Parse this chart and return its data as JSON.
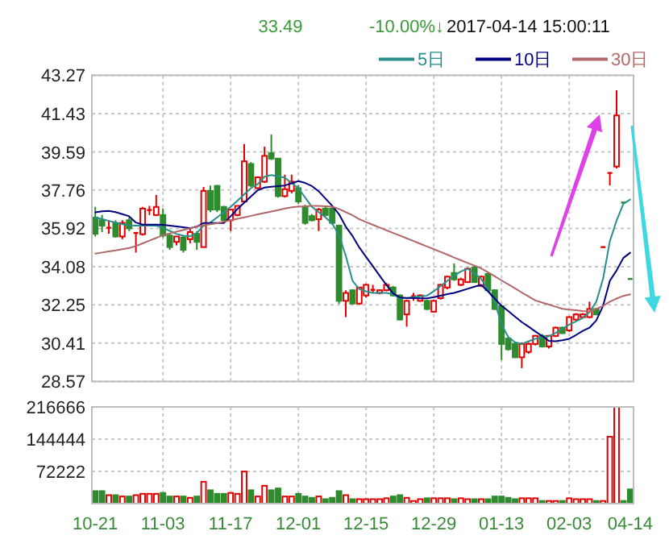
{
  "chart_data": [
    {
      "type": "candlestick",
      "annotations": [
        "33.49",
        "-10.00%↓",
        "2017-04-14 15:00:11"
      ],
      "categories": [
        null,
        null,
        null,
        null,
        null,
        null,
        null,
        null,
        null,
        null,
        null,
        null,
        null,
        null,
        null,
        null,
        null,
        null,
        null,
        null,
        null,
        null,
        null,
        null,
        null,
        null,
        null,
        null,
        null,
        null,
        null,
        null,
        null,
        null,
        null,
        null,
        null,
        null,
        null,
        null,
        null,
        null,
        null,
        null,
        null,
        null,
        null,
        null,
        null,
        null,
        null,
        null,
        null,
        null,
        null,
        null,
        null,
        null,
        null,
        null,
        null,
        null,
        null,
        null,
        null,
        null,
        null,
        null,
        null,
        null,
        null,
        null,
        null,
        null,
        null,
        null,
        null,
        null,
        null,
        null
      ],
      "ohlc": [
        [
          36.44,
          36.95,
          35.53,
          35.66
        ],
        [
          36.31,
          36.56,
          35.74,
          36.05
        ],
        [
          35.9,
          36.31,
          35.66,
          35.95
        ],
        [
          36.18,
          36.31,
          35.48,
          35.53
        ],
        [
          35.53,
          36.31,
          35.4,
          36.18
        ],
        [
          36.31,
          36.44,
          35.79,
          35.92
        ],
        [
          35.64,
          35.74,
          34.76,
          35.7
        ],
        [
          35.64,
          36.95,
          35.58,
          36.87
        ],
        [
          36.77,
          37.0,
          36.56,
          36.8
        ],
        [
          36.56,
          37.52,
          36.51,
          36.95
        ],
        [
          36.56,
          36.87,
          35.48,
          35.58
        ],
        [
          35.58,
          35.66,
          34.89,
          35.02
        ],
        [
          35.27,
          35.53,
          35.1,
          35.53
        ],
        [
          35.48,
          35.58,
          34.76,
          34.89
        ],
        [
          35.4,
          35.92,
          35.2,
          35.74
        ],
        [
          35.66,
          35.79,
          34.89,
          35.27
        ],
        [
          35.02,
          37.91,
          35.0,
          37.72
        ],
        [
          37.72,
          37.98,
          36.7,
          36.82
        ],
        [
          37.96,
          38.0,
          36.7,
          36.82
        ],
        [
          36.95,
          37.0,
          36.25,
          36.31
        ],
        [
          36.31,
          36.85,
          35.79,
          36.82
        ],
        [
          36.56,
          37.0,
          36.5,
          37.0
        ],
        [
          37.21,
          39.97,
          37.15,
          39.14
        ],
        [
          39.01,
          39.1,
          37.9,
          37.98
        ],
        [
          37.85,
          38.4,
          37.8,
          38.37
        ],
        [
          38.16,
          39.84,
          38.1,
          39.4
        ],
        [
          39.53,
          40.43,
          39.2,
          39.27
        ],
        [
          39.27,
          39.3,
          37.4,
          37.47
        ],
        [
          37.47,
          38.5,
          37.4,
          37.8
        ],
        [
          37.72,
          38.5,
          37.6,
          38.16
        ],
        [
          37.85,
          38.0,
          37.1,
          37.21
        ],
        [
          36.95,
          37.05,
          36.1,
          36.18
        ],
        [
          36.51,
          36.6,
          36.25,
          36.31
        ],
        [
          36.36,
          36.9,
          35.79,
          36.82
        ],
        [
          36.87,
          36.95,
          36.5,
          36.56
        ],
        [
          36.87,
          36.95,
          36.1,
          36.18
        ],
        [
          36.05,
          36.1,
          32.3,
          32.44
        ],
        [
          32.44,
          32.95,
          31.66,
          32.82
        ],
        [
          32.95,
          33.0,
          32.25,
          32.31
        ],
        [
          32.31,
          33.1,
          32.25,
          33.08
        ],
        [
          32.7,
          33.25,
          32.6,
          33.21
        ],
        [
          32.95,
          33.21,
          32.82,
          32.97
        ],
        [
          32.82,
          33.0,
          32.75,
          32.95
        ],
        [
          32.95,
          33.3,
          32.9,
          33.21
        ],
        [
          33.08,
          33.15,
          32.65,
          32.7
        ],
        [
          32.7,
          32.75,
          31.5,
          31.54
        ],
        [
          31.79,
          32.5,
          31.2,
          32.44
        ],
        [
          32.62,
          32.82,
          32.44,
          32.66
        ],
        [
          32.44,
          32.75,
          32.4,
          32.7
        ],
        [
          32.44,
          32.5,
          32.0,
          32.05
        ],
        [
          31.92,
          32.5,
          31.88,
          32.44
        ],
        [
          32.57,
          33.25,
          32.5,
          33.21
        ],
        [
          33.08,
          33.65,
          33.0,
          33.6
        ],
        [
          33.78,
          34.24,
          33.4,
          33.47
        ],
        [
          33.21,
          33.55,
          33.15,
          33.47
        ],
        [
          33.34,
          34.04,
          33.3,
          33.98
        ],
        [
          34.04,
          34.15,
          33.3,
          33.34
        ],
        [
          33.16,
          33.65,
          33.1,
          33.6
        ],
        [
          33.73,
          33.8,
          32.9,
          32.95
        ],
        [
          32.95,
          33.0,
          32.0,
          32.05
        ],
        [
          32.18,
          32.25,
          29.6,
          30.37
        ],
        [
          30.63,
          30.7,
          30.05,
          30.12
        ],
        [
          30.37,
          30.45,
          29.7,
          29.73
        ],
        [
          29.73,
          30.45,
          29.21,
          30.37
        ],
        [
          29.99,
          30.45,
          29.9,
          30.37
        ],
        [
          30.37,
          30.8,
          30.3,
          30.76
        ],
        [
          30.76,
          30.85,
          30.2,
          30.25
        ],
        [
          30.25,
          30.8,
          30.15,
          30.76
        ],
        [
          30.76,
          31.2,
          30.7,
          31.15
        ],
        [
          31.15,
          31.2,
          30.85,
          30.89
        ],
        [
          31.02,
          31.7,
          30.95,
          31.66
        ],
        [
          31.54,
          31.85,
          31.5,
          31.79
        ],
        [
          31.66,
          31.85,
          31.6,
          31.79
        ],
        [
          31.66,
          32.4,
          31.6,
          32.05
        ],
        [
          32.05,
          32.1,
          31.75,
          31.79
        ],
        [
          35.02,
          35.02,
          35.02,
          35.02
        ],
        [
          38.58,
          38.58,
          37.98,
          38.58
        ],
        [
          38.89,
          42.55,
          38.8,
          41.34
        ],
        [
          37.16,
          37.16,
          37.16,
          37.16
        ],
        [
          33.49,
          33.49,
          33.49,
          33.49
        ]
      ],
      "colors": [
        "#2e8b2e",
        "#2e8b2e",
        "#e00000",
        "#2e8b2e",
        "#e00000",
        "#2e8b2e",
        "#e00000",
        "#e00000",
        "#e00000",
        "#e00000",
        "#2e8b2e",
        "#2e8b2e",
        "#e00000",
        "#2e8b2e",
        "#e00000",
        "#2e8b2e",
        "#e00000",
        "#2e8b2e",
        "#2e8b2e",
        "#2e8b2e",
        "#e00000",
        "#e00000",
        "#e00000",
        "#2e8b2e",
        "#e00000",
        "#e00000",
        "#2e8b2e",
        "#2e8b2e",
        "#e00000",
        "#e00000",
        "#2e8b2e",
        "#2e8b2e",
        "#2e8b2e",
        "#e00000",
        "#2e8b2e",
        "#2e8b2e",
        "#2e8b2e",
        "#e00000",
        "#2e8b2e",
        "#e00000",
        "#e00000",
        "#e00000",
        "#e00000",
        "#e00000",
        "#2e8b2e",
        "#2e8b2e",
        "#e00000",
        "#e00000",
        "#e00000",
        "#2e8b2e",
        "#e00000",
        "#e00000",
        "#e00000",
        "#2e8b2e",
        "#e00000",
        "#e00000",
        "#2e8b2e",
        "#e00000",
        "#2e8b2e",
        "#2e8b2e",
        "#2e8b2e",
        "#2e8b2e",
        "#2e8b2e",
        "#e00000",
        "#e00000",
        "#e00000",
        "#2e8b2e",
        "#e00000",
        "#e00000",
        "#2e8b2e",
        "#e00000",
        "#e00000",
        "#e00000",
        "#e00000",
        "#2e8b2e",
        "#e00000",
        "#e00000",
        "#e00000",
        "#2e8b2e",
        "#2e8b2e"
      ],
      "series": [
        {
          "name": "5日",
          "type": "line",
          "color": "#2a8f8a",
          "values": [
            36.44,
            36.37,
            36.28,
            36.2,
            36.12,
            36.06,
            36.05,
            36.05,
            36.05,
            36.05,
            35.95,
            35.8,
            35.65,
            35.57,
            35.54,
            35.7,
            36.05,
            36.2,
            36.45,
            36.7,
            36.95,
            37.25,
            37.55,
            37.85,
            38.05,
            38.4,
            38.48,
            38.42,
            38.35,
            38.1,
            37.85,
            37.4,
            36.95,
            36.7,
            36.45,
            36.15,
            35.6,
            34.6,
            33.4,
            33.0,
            32.9,
            32.82,
            32.82,
            32.82,
            32.75,
            32.56,
            32.58,
            32.62,
            32.66,
            32.69,
            32.9,
            33.15,
            33.4,
            33.65,
            33.85,
            33.98,
            33.75,
            33.5,
            33.0,
            32.4,
            31.3,
            30.7,
            30.45,
            30.37,
            30.5,
            30.62,
            30.68,
            30.74,
            30.9,
            31.1,
            31.3,
            31.45,
            31.62,
            31.9,
            32.4,
            33.5,
            35.3,
            36.3,
            37.1,
            37.3
          ]
        },
        {
          "name": "10日",
          "type": "line",
          "color": "#000080",
          "values": [
            36.69,
            36.74,
            36.76,
            36.7,
            36.6,
            36.5,
            36.2,
            36.1,
            36.1,
            36.1,
            36.09,
            36.05,
            36.01,
            35.97,
            35.93,
            36.0,
            36.18,
            36.18,
            36.18,
            36.18,
            36.5,
            36.85,
            37.15,
            37.45,
            37.75,
            37.88,
            37.92,
            37.95,
            37.98,
            38.08,
            38.19,
            38.1,
            37.95,
            37.7,
            37.35,
            37.0,
            36.6,
            36.0,
            35.55,
            35.0,
            34.55,
            34.1,
            33.65,
            33.2,
            32.8,
            32.6,
            32.58,
            32.57,
            32.56,
            32.56,
            32.62,
            32.69,
            32.76,
            32.82,
            32.92,
            33.02,
            33.12,
            33.21,
            32.9,
            32.55,
            32.2,
            31.95,
            31.68,
            31.42,
            31.2,
            30.97,
            30.75,
            30.52,
            30.5,
            30.55,
            30.62,
            30.8,
            31.0,
            31.15,
            31.5,
            32.2,
            33.4,
            33.9,
            34.5,
            34.75
          ]
        },
        {
          "name": "30日",
          "type": "line",
          "color": "#b06868",
          "values": [
            34.71,
            34.76,
            34.81,
            34.86,
            34.92,
            34.98,
            35.07,
            35.2,
            35.33,
            35.46,
            35.6,
            35.68,
            35.76,
            35.84,
            35.92,
            36.02,
            36.07,
            36.12,
            36.17,
            36.24,
            36.31,
            36.38,
            36.45,
            36.52,
            36.59,
            36.66,
            36.73,
            36.8,
            36.87,
            36.93,
            36.96,
            36.98,
            37.0,
            37.0,
            36.98,
            36.96,
            36.85,
            36.7,
            36.55,
            36.36,
            36.22,
            36.09,
            35.96,
            35.83,
            35.7,
            35.57,
            35.44,
            35.31,
            35.18,
            35.05,
            34.92,
            34.79,
            34.66,
            34.52,
            34.39,
            34.26,
            34.13,
            34.0,
            33.81,
            33.62,
            33.42,
            33.23,
            33.04,
            32.84,
            32.65,
            32.46,
            32.36,
            32.26,
            32.16,
            32.06,
            32.02,
            31.99,
            31.95,
            31.92,
            32.05,
            32.2,
            32.4,
            32.55,
            32.68,
            32.75
          ]
        }
      ],
      "ylim": [
        28.57,
        43.27
      ],
      "yticks": [
        28.57,
        30.41,
        32.25,
        34.08,
        35.92,
        37.76,
        39.59,
        41.43,
        43.27
      ],
      "grid": true,
      "legend": "top right",
      "tick_labels": "y"
    },
    {
      "type": "bar",
      "categories": [
        "10-21",
        null,
        null,
        null,
        null,
        null,
        null,
        null,
        null,
        null,
        "11-03",
        null,
        null,
        null,
        null,
        null,
        null,
        null,
        null,
        null,
        "11-17",
        null,
        null,
        null,
        null,
        null,
        null,
        null,
        null,
        null,
        "12-01",
        null,
        null,
        null,
        null,
        null,
        null,
        null,
        null,
        null,
        "12-15",
        null,
        null,
        null,
        null,
        null,
        null,
        null,
        null,
        null,
        "12-29",
        null,
        null,
        null,
        null,
        null,
        null,
        null,
        null,
        null,
        "01-13",
        null,
        null,
        null,
        null,
        null,
        null,
        null,
        null,
        null,
        "02-03",
        null,
        null,
        null,
        null,
        null,
        null,
        null,
        null,
        "04-14"
      ],
      "values": [
        28000,
        28000,
        19000,
        19000,
        16000,
        16000,
        19000,
        22000,
        22000,
        22000,
        24000,
        16000,
        16000,
        16000,
        13000,
        16000,
        49000,
        30000,
        22000,
        22000,
        24000,
        22000,
        72000,
        30000,
        16000,
        40000,
        30000,
        34000,
        16000,
        16000,
        22000,
        16000,
        13000,
        16000,
        10000,
        13000,
        28000,
        19000,
        10000,
        10000,
        10000,
        10000,
        10000,
        12000,
        16000,
        19000,
        13000,
        6000,
        10000,
        12000,
        12000,
        12000,
        12000,
        10000,
        12000,
        10000,
        10000,
        10000,
        10000,
        16000,
        16000,
        13000,
        10000,
        12000,
        12000,
        12000,
        6000,
        6000,
        6000,
        6000,
        12000,
        10000,
        10000,
        10000,
        6000,
        6000,
        150000,
        216666,
        6000,
        32000
      ],
      "colors": [
        "#2e8b2e",
        "#2e8b2e",
        "#e00000",
        "#2e8b2e",
        "#e00000",
        "#2e8b2e",
        "#e00000",
        "#e00000",
        "#e00000",
        "#e00000",
        "#2e8b2e",
        "#2e8b2e",
        "#e00000",
        "#2e8b2e",
        "#e00000",
        "#2e8b2e",
        "#e00000",
        "#2e8b2e",
        "#2e8b2e",
        "#2e8b2e",
        "#e00000",
        "#e00000",
        "#e00000",
        "#2e8b2e",
        "#e00000",
        "#e00000",
        "#2e8b2e",
        "#2e8b2e",
        "#e00000",
        "#e00000",
        "#2e8b2e",
        "#2e8b2e",
        "#2e8b2e",
        "#e00000",
        "#2e8b2e",
        "#2e8b2e",
        "#2e8b2e",
        "#e00000",
        "#2e8b2e",
        "#e00000",
        "#e00000",
        "#e00000",
        "#e00000",
        "#e00000",
        "#2e8b2e",
        "#2e8b2e",
        "#e00000",
        "#e00000",
        "#e00000",
        "#2e8b2e",
        "#e00000",
        "#e00000",
        "#e00000",
        "#2e8b2e",
        "#e00000",
        "#e00000",
        "#2e8b2e",
        "#e00000",
        "#2e8b2e",
        "#2e8b2e",
        "#2e8b2e",
        "#2e8b2e",
        "#2e8b2e",
        "#e00000",
        "#e00000",
        "#e00000",
        "#2e8b2e",
        "#e00000",
        "#e00000",
        "#2e8b2e",
        "#e00000",
        "#e00000",
        "#e00000",
        "#e00000",
        "#2e8b2e",
        "#e00000",
        "#e00000",
        "#e00000",
        "#2e8b2e",
        "#2e8b2e"
      ],
      "ylim": [
        0,
        216666
      ],
      "yticks": [
        72222,
        144444,
        216666
      ],
      "grid": true
    }
  ]
}
